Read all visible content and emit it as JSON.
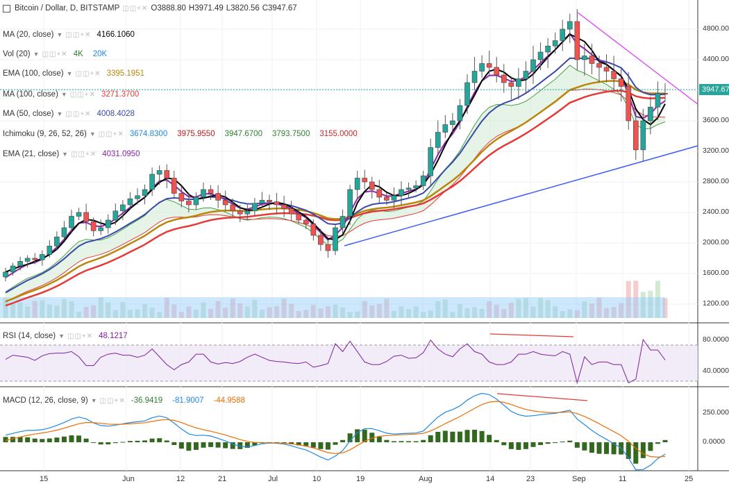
{
  "symbol_title": "Bitcoin / Dollar, D, BITSTAMP",
  "ohlc": {
    "o": "O3888.80",
    "h": "H3971.49",
    "l": "L3820.56",
    "c": "C3947.67"
  },
  "legends": [
    {
      "name": "MA (20, close)",
      "values": [
        {
          "v": "4166.1060",
          "color": "#000000"
        }
      ]
    },
    {
      "name": "Vol (20)",
      "values": [
        {
          "v": "4K",
          "color": "#2e7d32"
        },
        {
          "v": "20K",
          "color": "#1e88e5"
        }
      ]
    },
    {
      "name": "EMA (100, close)",
      "values": [
        {
          "v": "3395.1951",
          "color": "#b8860b"
        }
      ]
    },
    {
      "name": "MA (100, close)",
      "values": [
        {
          "v": "3271.3700",
          "color": "#e53935"
        }
      ]
    },
    {
      "name": "MA (50, close)",
      "values": [
        {
          "v": "4008.4028",
          "color": "#3949ab"
        }
      ]
    },
    {
      "name": "Ichimoku (9, 26, 52, 26)",
      "values": [
        {
          "v": "3674.8300",
          "color": "#1e88e5"
        },
        {
          "v": "3975.9550",
          "color": "#b71c1c"
        },
        {
          "v": "3947.6700",
          "color": "#2e7d32"
        },
        {
          "v": "3793.7500",
          "color": "#2e7d32"
        },
        {
          "v": "3155.0000",
          "color": "#c62828"
        }
      ]
    },
    {
      "name": "EMA (21, close)",
      "values": [
        {
          "v": "4031.0950",
          "color": "#8e24aa"
        }
      ]
    }
  ],
  "rsi_legend": {
    "name": "RSI (14, close)",
    "value": "48.1217",
    "color": "#7b1fa2"
  },
  "macd_legend": {
    "name": "MACD (12, 26, close, 9)",
    "values": [
      {
        "v": "-36.9419",
        "color": "#2e7d32"
      },
      {
        "v": "-81.9007",
        "color": "#1e88e5"
      },
      {
        "v": "-44.9588",
        "color": "#ef6c00"
      }
    ]
  },
  "price_axis": [
    "4800.00",
    "4400.00",
    "4000.00",
    "3600.00",
    "3200.00",
    "2800.00",
    "2400.00",
    "2000.00",
    "1600.00",
    "1200.00"
  ],
  "last_price": "3947.67",
  "rsi_axis": [
    "80.0000",
    "40.0000"
  ],
  "macd_axis": [
    "250.0000",
    "0.0000"
  ],
  "x_axis": [
    "15",
    "Jun",
    "12",
    "21",
    "Jul",
    "10",
    "19",
    "Aug",
    "14",
    "23",
    "Sep",
    "11",
    "25"
  ],
  "colors": {
    "up": "#26a69a",
    "down": "#ef5350",
    "rsi": "#7b1fa2",
    "ma20": "#000000",
    "ma50": "#3949ab",
    "ema21": "#8e24aa",
    "ema100": "#b8860b",
    "ma100": "#e53935"
  },
  "chart_data": {
    "type": "candlestick",
    "title": "Bitcoin / Dollar, D, BITSTAMP",
    "ylim": [
      1000,
      5000
    ],
    "close_series": [
      1620,
      1700,
      1760,
      1800,
      1780,
      1850,
      1960,
      2080,
      2200,
      2350,
      2400,
      2280,
      2160,
      2200,
      2300,
      2420,
      2500,
      2580,
      2620,
      2700,
      2900,
      2950,
      2850,
      2650,
      2550,
      2500,
      2600,
      2700,
      2650,
      2560,
      2500,
      2420,
      2380,
      2420,
      2520,
      2560,
      2540,
      2500,
      2450,
      2380,
      2300,
      2250,
      2100,
      1980,
      1900,
      2200,
      2350,
      2700,
      2850,
      2800,
      2700,
      2600,
      2560,
      2620,
      2700,
      2720,
      2750,
      2880,
      3250,
      3450,
      3550,
      3600,
      3800,
      4100,
      4250,
      4350,
      4300,
      4200,
      4100,
      4050,
      4150,
      4250,
      4400,
      4500,
      4580,
      4650,
      4800,
      4900,
      4400,
      4450,
      4350,
      4300,
      4250,
      4150,
      4050,
      3600,
      3220,
      3600,
      3780,
      3960,
      3947.67
    ],
    "annotations": {
      "descending_trendline": "magenta",
      "ascending_trendline": "blue"
    },
    "indicators": {
      "rsi_range": [
        20,
        100
      ],
      "macd_range": [
        -200,
        500
      ]
    }
  }
}
